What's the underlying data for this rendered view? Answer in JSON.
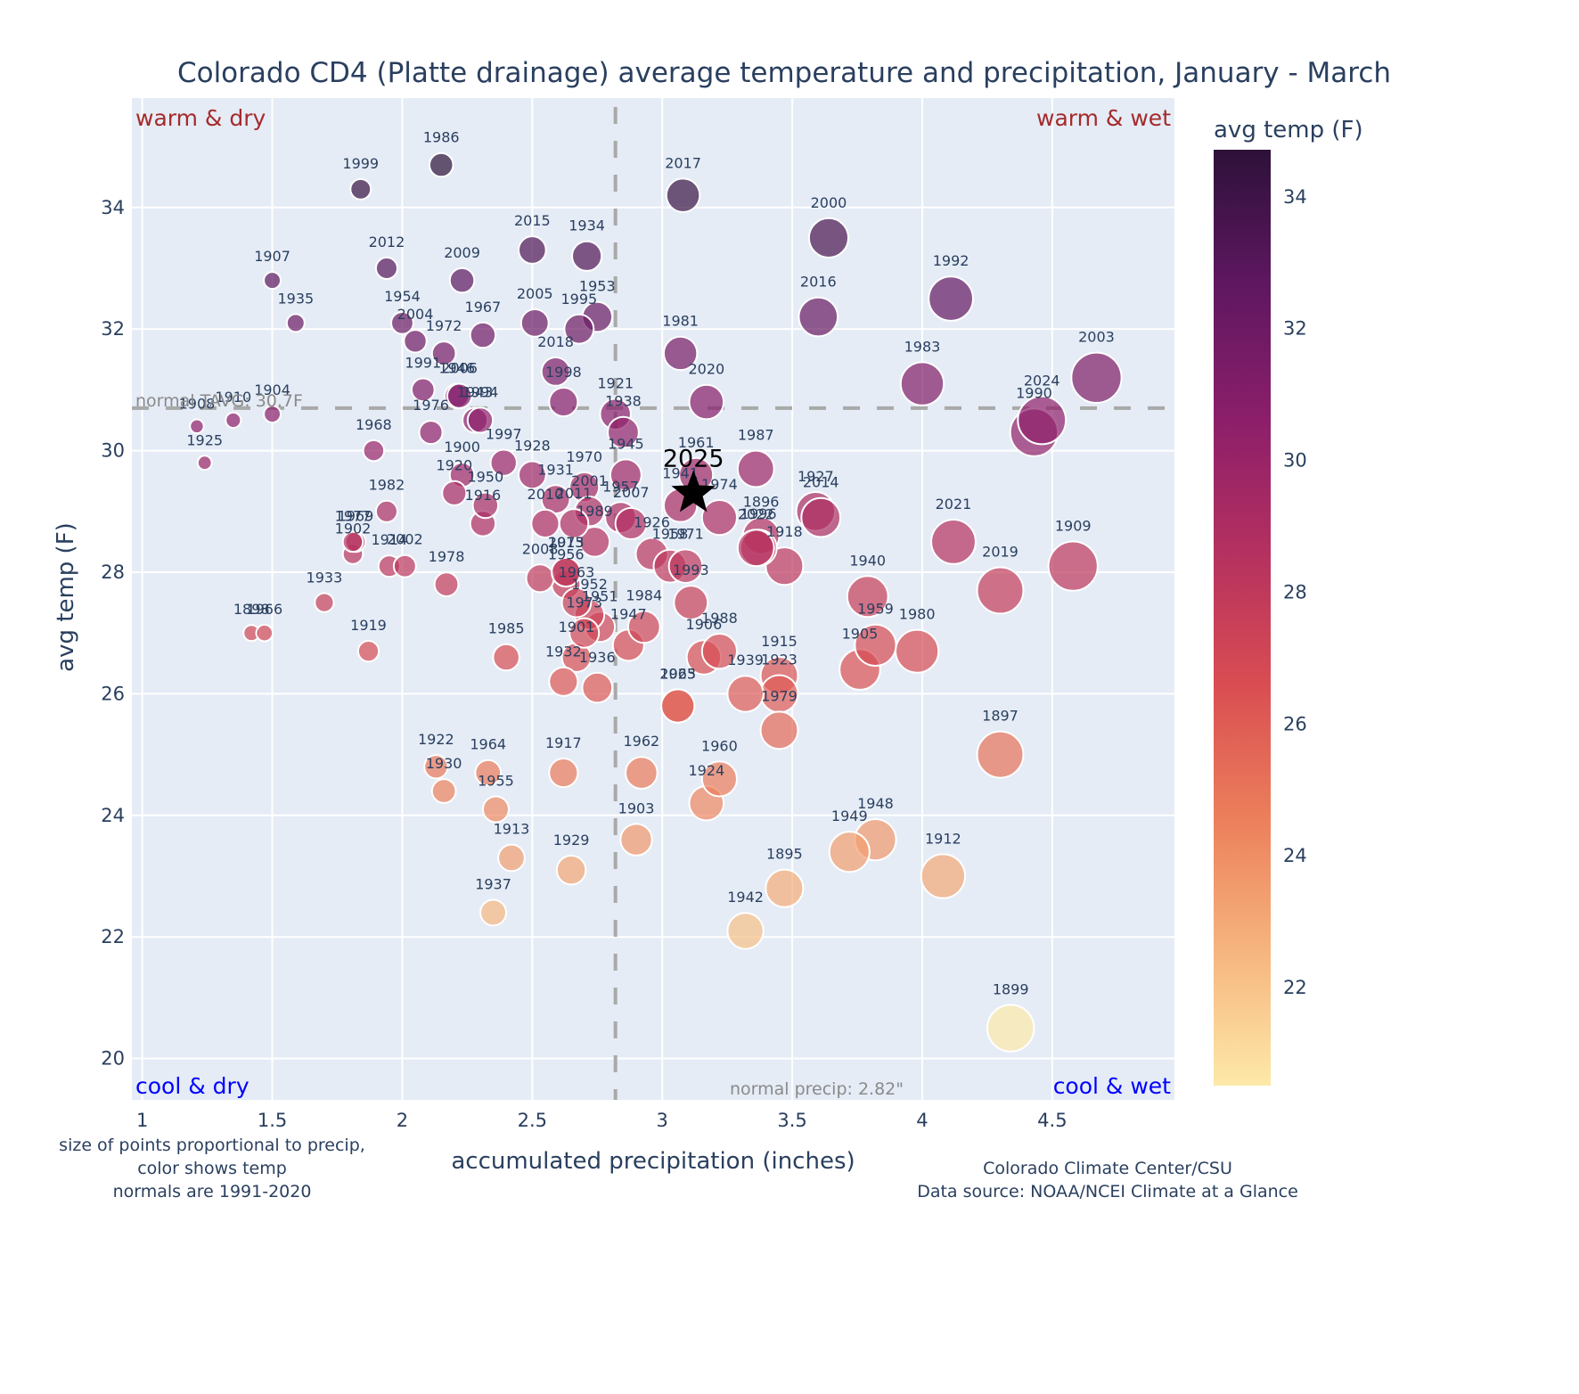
{
  "chart_data": {
    "type": "scatter",
    "title": "Colorado CD4 (Platte drainage) average temperature and precipitation, January - March",
    "xlabel": "accumulated precipitation (inches)",
    "ylabel": "avg temp (F)",
    "xlim": [
      0.96,
      4.97
    ],
    "ylim": [
      19.32,
      35.8
    ],
    "xticks": [
      1,
      1.5,
      2,
      2.5,
      3,
      3.5,
      4,
      4.5
    ],
    "xtick_labels": [
      "1",
      "1.5",
      "2",
      "2.5",
      "3",
      "3.5",
      "4",
      "4.5"
    ],
    "yticks": [
      20,
      22,
      24,
      26,
      28,
      30,
      32,
      34
    ],
    "ytick_labels": [
      "20",
      "22",
      "24",
      "26",
      "28",
      "30",
      "32",
      "34"
    ],
    "grid": true,
    "colorbar": {
      "title": "avg temp (F)",
      "range": [
        20.5,
        34.7
      ],
      "ticks": [
        22,
        24,
        26,
        28,
        30,
        32,
        34
      ],
      "tick_labels": [
        "22",
        "24",
        "26",
        "28",
        "30",
        "32",
        "34"
      ],
      "colorscale": [
        "#fde9a9",
        "#f6b57e",
        "#ec7f5b",
        "#d94d52",
        "#b43060",
        "#8b1e6a",
        "#5e1760",
        "#2d1139"
      ]
    },
    "reference_lines": {
      "normal_temp": {
        "value": 30.7,
        "label": "normal TAVG: 30.7F"
      },
      "normal_precip": {
        "value": 2.82,
        "label": "normal precip: 2.82\""
      }
    },
    "quadrant_labels": {
      "top_left": {
        "text": "warm & dry",
        "color": "#a52a2a"
      },
      "top_right": {
        "text": "warm & wet",
        "color": "#a52a2a"
      },
      "bottom_left": {
        "text": "cool & dry",
        "color": "#0000ff"
      },
      "bottom_right": {
        "text": "cool & wet",
        "color": "#0000ff"
      }
    },
    "highlight": {
      "label": "2025",
      "x": 3.12,
      "y": 29.3,
      "marker": "star"
    },
    "points": [
      {
        "year": "1895",
        "x": 3.47,
        "y": 22.8
      },
      {
        "year": "1896",
        "x": 3.38,
        "y": 28.6
      },
      {
        "year": "1897",
        "x": 4.3,
        "y": 25.0
      },
      {
        "year": "1898",
        "x": 1.42,
        "y": 27.0
      },
      {
        "year": "1899",
        "x": 4.34,
        "y": 20.5
      },
      {
        "year": "1900",
        "x": 2.23,
        "y": 29.6
      },
      {
        "year": "1901",
        "x": 2.67,
        "y": 26.6
      },
      {
        "year": "1902",
        "x": 1.81,
        "y": 28.3
      },
      {
        "year": "1903",
        "x": 2.9,
        "y": 23.6
      },
      {
        "year": "1904",
        "x": 1.5,
        "y": 30.6
      },
      {
        "year": "1905",
        "x": 3.76,
        "y": 26.4
      },
      {
        "year": "1906",
        "x": 3.16,
        "y": 26.6
      },
      {
        "year": "1907",
        "x": 1.5,
        "y": 32.8
      },
      {
        "year": "1908",
        "x": 1.21,
        "y": 30.4
      },
      {
        "year": "1909",
        "x": 4.58,
        "y": 28.1
      },
      {
        "year": "1910",
        "x": 1.35,
        "y": 30.5
      },
      {
        "year": "1912",
        "x": 4.08,
        "y": 23.0
      },
      {
        "year": "1913",
        "x": 2.42,
        "y": 23.3
      },
      {
        "year": "1914",
        "x": 1.95,
        "y": 28.1
      },
      {
        "year": "1915",
        "x": 3.45,
        "y": 26.3
      },
      {
        "year": "1916",
        "x": 2.31,
        "y": 28.8
      },
      {
        "year": "1917",
        "x": 2.62,
        "y": 24.7
      },
      {
        "year": "1918",
        "x": 3.47,
        "y": 28.1
      },
      {
        "year": "1919",
        "x": 1.87,
        "y": 26.7
      },
      {
        "year": "1920",
        "x": 2.2,
        "y": 29.3
      },
      {
        "year": "1921",
        "x": 2.82,
        "y": 30.6
      },
      {
        "year": "1922",
        "x": 2.13,
        "y": 24.8
      },
      {
        "year": "1923",
        "x": 3.45,
        "y": 26.0
      },
      {
        "year": "1924",
        "x": 3.17,
        "y": 24.2
      },
      {
        "year": "1925",
        "x": 1.24,
        "y": 29.8
      },
      {
        "year": "1926",
        "x": 2.96,
        "y": 28.3
      },
      {
        "year": "1927",
        "x": 3.59,
        "y": 29.0
      },
      {
        "year": "1928",
        "x": 2.5,
        "y": 29.6
      },
      {
        "year": "1929",
        "x": 2.65,
        "y": 23.1
      },
      {
        "year": "1930",
        "x": 2.16,
        "y": 24.4
      },
      {
        "year": "1931",
        "x": 2.59,
        "y": 29.2
      },
      {
        "year": "1932",
        "x": 2.62,
        "y": 26.2
      },
      {
        "year": "1933",
        "x": 1.7,
        "y": 27.5
      },
      {
        "year": "1934",
        "x": 2.71,
        "y": 33.2
      },
      {
        "year": "1935",
        "x": 1.59,
        "y": 32.1
      },
      {
        "year": "1936",
        "x": 2.75,
        "y": 26.1
      },
      {
        "year": "1937",
        "x": 2.35,
        "y": 22.4
      },
      {
        "year": "1938",
        "x": 2.85,
        "y": 30.3
      },
      {
        "year": "1939",
        "x": 3.32,
        "y": 26.0
      },
      {
        "year": "1940",
        "x": 3.79,
        "y": 27.6
      },
      {
        "year": "1941",
        "x": 3.07,
        "y": 29.1
      },
      {
        "year": "1943",
        "x": 2.28,
        "y": 30.5
      },
      {
        "year": "1942",
        "x": 3.32,
        "y": 22.1
      },
      {
        "year": "1945",
        "x": 2.86,
        "y": 29.6
      },
      {
        "year": "1946",
        "x": 2.21,
        "y": 30.9
      },
      {
        "year": "1947",
        "x": 2.87,
        "y": 26.8
      },
      {
        "year": "1948",
        "x": 3.82,
        "y": 23.6
      },
      {
        "year": "1949",
        "x": 3.72,
        "y": 23.4
      },
      {
        "year": "1950",
        "x": 2.32,
        "y": 29.1
      },
      {
        "year": "1951",
        "x": 2.76,
        "y": 27.1
      },
      {
        "year": "1952",
        "x": 2.72,
        "y": 27.3
      },
      {
        "year": "1953",
        "x": 2.75,
        "y": 32.2
      },
      {
        "year": "1954",
        "x": 2.0,
        "y": 32.1
      },
      {
        "year": "1955",
        "x": 2.36,
        "y": 24.1
      },
      {
        "year": "1956",
        "x": 2.63,
        "y": 27.8
      },
      {
        "year": "1957",
        "x": 2.84,
        "y": 28.9
      },
      {
        "year": "1958",
        "x": 3.03,
        "y": 28.1
      },
      {
        "year": "1959",
        "x": 3.82,
        "y": 26.8
      },
      {
        "year": "1960",
        "x": 3.22,
        "y": 24.6
      },
      {
        "year": "1961",
        "x": 3.13,
        "y": 29.6
      },
      {
        "year": "1962",
        "x": 2.92,
        "y": 24.7
      },
      {
        "year": "1963",
        "x": 2.67,
        "y": 27.5
      },
      {
        "year": "1964",
        "x": 2.33,
        "y": 24.7
      },
      {
        "year": "1965",
        "x": 3.06,
        "y": 25.8
      },
      {
        "year": "1966",
        "x": 1.47,
        "y": 27.0
      },
      {
        "year": "1967",
        "x": 2.31,
        "y": 31.9
      },
      {
        "year": "1968",
        "x": 1.89,
        "y": 30.0
      },
      {
        "year": "1969",
        "x": 1.82,
        "y": 28.5
      },
      {
        "year": "1970",
        "x": 2.7,
        "y": 29.4
      },
      {
        "year": "1971",
        "x": 3.09,
        "y": 28.1
      },
      {
        "year": "1972",
        "x": 2.16,
        "y": 31.6
      },
      {
        "year": "1973",
        "x": 2.7,
        "y": 27.0
      },
      {
        "year": "1974",
        "x": 3.22,
        "y": 28.9
      },
      {
        "year": "1975",
        "x": 2.63,
        "y": 28.0
      },
      {
        "year": "1976",
        "x": 2.11,
        "y": 30.3
      },
      {
        "year": "1977",
        "x": 1.81,
        "y": 28.5
      },
      {
        "year": "1978",
        "x": 2.17,
        "y": 27.8
      },
      {
        "year": "1979",
        "x": 3.45,
        "y": 25.4
      },
      {
        "year": "1980",
        "x": 3.98,
        "y": 26.7
      },
      {
        "year": "1981",
        "x": 3.07,
        "y": 31.6
      },
      {
        "year": "1982",
        "x": 1.94,
        "y": 29.0
      },
      {
        "year": "1983",
        "x": 4.0,
        "y": 31.1
      },
      {
        "year": "1984",
        "x": 2.93,
        "y": 27.1
      },
      {
        "year": "1985",
        "x": 2.4,
        "y": 26.6
      },
      {
        "year": "1986",
        "x": 2.15,
        "y": 34.7
      },
      {
        "year": "1987",
        "x": 3.36,
        "y": 29.7
      },
      {
        "year": "1988",
        "x": 3.22,
        "y": 26.7
      },
      {
        "year": "1989",
        "x": 2.74,
        "y": 28.5
      },
      {
        "year": "1990",
        "x": 4.43,
        "y": 30.3
      },
      {
        "year": "1991",
        "x": 2.08,
        "y": 31.0
      },
      {
        "year": "1992",
        "x": 4.11,
        "y": 32.5
      },
      {
        "year": "1993",
        "x": 3.11,
        "y": 27.5
      },
      {
        "year": "1994",
        "x": 2.3,
        "y": 30.5
      },
      {
        "year": "1995",
        "x": 2.68,
        "y": 32.0
      },
      {
        "year": "1996",
        "x": 3.37,
        "y": 28.4
      },
      {
        "year": "1997",
        "x": 2.39,
        "y": 29.8
      },
      {
        "year": "1998",
        "x": 2.62,
        "y": 30.8
      },
      {
        "year": "1999",
        "x": 1.84,
        "y": 34.3
      },
      {
        "year": "2000",
        "x": 3.64,
        "y": 33.5
      },
      {
        "year": "2001",
        "x": 2.72,
        "y": 29.0
      },
      {
        "year": "2002",
        "x": 2.01,
        "y": 28.1
      },
      {
        "year": "2003",
        "x": 4.67,
        "y": 31.2
      },
      {
        "year": "2004",
        "x": 2.05,
        "y": 31.8
      },
      {
        "year": "2005",
        "x": 2.51,
        "y": 32.1
      },
      {
        "year": "2006",
        "x": 2.22,
        "y": 30.9
      },
      {
        "year": "2007",
        "x": 2.88,
        "y": 28.8
      },
      {
        "year": "2008",
        "x": 2.53,
        "y": 27.9
      },
      {
        "year": "2009",
        "x": 2.23,
        "y": 32.8
      },
      {
        "year": "2010",
        "x": 2.55,
        "y": 28.8
      },
      {
        "year": "2011",
        "x": 2.66,
        "y": 28.8
      },
      {
        "year": "2012",
        "x": 1.94,
        "y": 33.0
      },
      {
        "year": "2013",
        "x": 2.63,
        "y": 28.0
      },
      {
        "year": "2014",
        "x": 3.61,
        "y": 28.9
      },
      {
        "year": "2015",
        "x": 2.5,
        "y": 33.3
      },
      {
        "year": "2016",
        "x": 3.6,
        "y": 32.2
      },
      {
        "year": "2017",
        "x": 3.08,
        "y": 34.2
      },
      {
        "year": "2018",
        "x": 2.59,
        "y": 31.3
      },
      {
        "year": "2019",
        "x": 4.3,
        "y": 27.7
      },
      {
        "year": "2020",
        "x": 3.17,
        "y": 30.8
      },
      {
        "year": "2021",
        "x": 4.12,
        "y": 28.5
      },
      {
        "year": "2022",
        "x": 3.36,
        "y": 28.4
      },
      {
        "year": "2023",
        "x": 3.06,
        "y": 25.8
      },
      {
        "year": "2024",
        "x": 4.46,
        "y": 30.5
      }
    ]
  },
  "notes": {
    "bottom_left": [
      "size of points proportional to precip,",
      "color shows temp",
      "normals are 1991-2020"
    ],
    "bottom_right": [
      "Colorado Climate Center/CSU",
      "Data source: NOAA/NCEI Climate at a Glance"
    ]
  }
}
